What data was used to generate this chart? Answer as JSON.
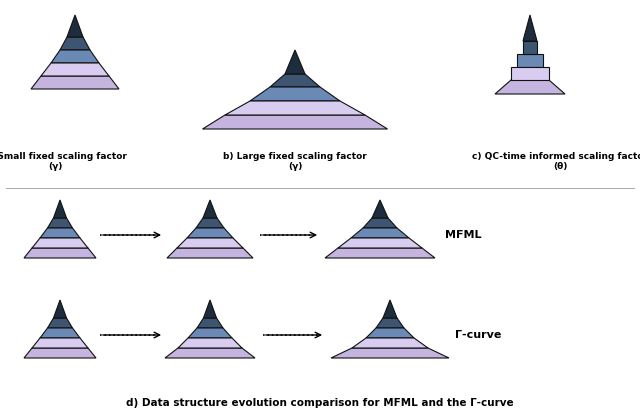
{
  "colors": {
    "dark_tip": "#1e2d3d",
    "dark_mid": "#3d5570",
    "blue_layer": "#6a8ab5",
    "lavender": "#c5b3e0",
    "light_lavender": "#d8ccf0",
    "outline": "#111111",
    "white": "#ffffff"
  },
  "title_a": "a) Small fixed scaling factor\n(γ)",
  "title_b": "b) Large fixed scaling factor\n(γ)",
  "title_c": "c) QC-time informed scaling factor\n(θ)",
  "title_d": "d) Data structure evolution comparison for MFML and the Γ-curve",
  "label_mfml": "MFML",
  "label_gamma": "Γ-curve"
}
